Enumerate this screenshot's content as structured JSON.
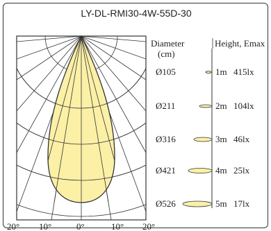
{
  "title": "LY-DL-RMI30-4W-55D-30",
  "headers": {
    "diameter": "Diameter",
    "diameter_unit": "(cm)",
    "height_emax": "Height, Emax"
  },
  "rows": [
    {
      "diameter": "Ø105",
      "height": "1m",
      "lux": "415lx"
    },
    {
      "diameter": "Ø211",
      "height": "2m",
      "lux": "104lx"
    },
    {
      "diameter": "Ø316",
      "height": "3m",
      "lux": "46lx"
    },
    {
      "diameter": "Ø421",
      "height": "4m",
      "lux": "25lx"
    },
    {
      "diameter": "Ø526",
      "height": "5m",
      "lux": "17lx"
    }
  ],
  "angle_labels": [
    "20°",
    "10°",
    "0°",
    "10°",
    "20°"
  ],
  "colors": {
    "beam_fill": "#fbf0a6",
    "beam_stroke": "#333333",
    "grid": "#333333"
  }
}
